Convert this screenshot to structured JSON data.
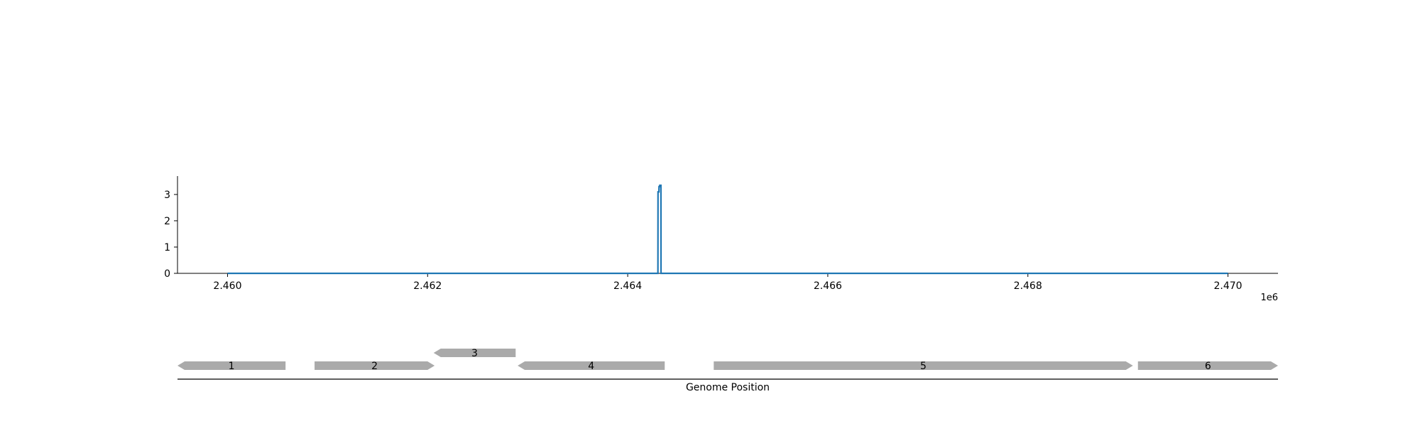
{
  "chart_data": [
    {
      "type": "line",
      "x_offset_label": "1e6",
      "x_ticks": [
        2.46,
        2.462,
        2.464,
        2.466,
        2.468,
        2.47
      ],
      "x_tick_labels": [
        "2.460",
        "2.462",
        "2.464",
        "2.466",
        "2.468",
        "2.470"
      ],
      "xlim": [
        2.4595,
        2.4705
      ],
      "y_ticks": [
        0,
        1,
        2,
        3
      ],
      "y_tick_labels": [
        "0",
        "1",
        "2",
        "3"
      ],
      "ylim": [
        0,
        3.7
      ],
      "series": [
        {
          "color": "#1f77b4",
          "x": [
            2.46,
            2.464302,
            2.464303,
            2.464312,
            2.464313,
            2.46432,
            2.464321,
            2.464332,
            2.464333,
            2.47
          ],
          "y": [
            0,
            0,
            3.1,
            3.1,
            3.3,
            3.3,
            3.35,
            3.35,
            0,
            0
          ]
        }
      ]
    },
    {
      "type": "gene-map",
      "xlabel": "Genome Position",
      "xlim": [
        2.4595,
        2.4705
      ],
      "gene_color": "#aaaaaa",
      "genes": [
        {
          "label": "1",
          "start": 2.4595,
          "end": 2.46058,
          "strand": "-",
          "row": 0
        },
        {
          "label": "2",
          "start": 2.46087,
          "end": 2.46207,
          "strand": "+",
          "row": 0
        },
        {
          "label": "3",
          "start": 2.46206,
          "end": 2.46288,
          "strand": "-",
          "row": 1
        },
        {
          "label": "4",
          "start": 2.4629,
          "end": 2.46437,
          "strand": "-",
          "row": 0
        },
        {
          "label": "5",
          "start": 2.46486,
          "end": 2.46905,
          "strand": "+",
          "row": 0
        },
        {
          "label": "6",
          "start": 2.4691,
          "end": 2.4705,
          "strand": "+",
          "row": 0
        }
      ]
    }
  ]
}
